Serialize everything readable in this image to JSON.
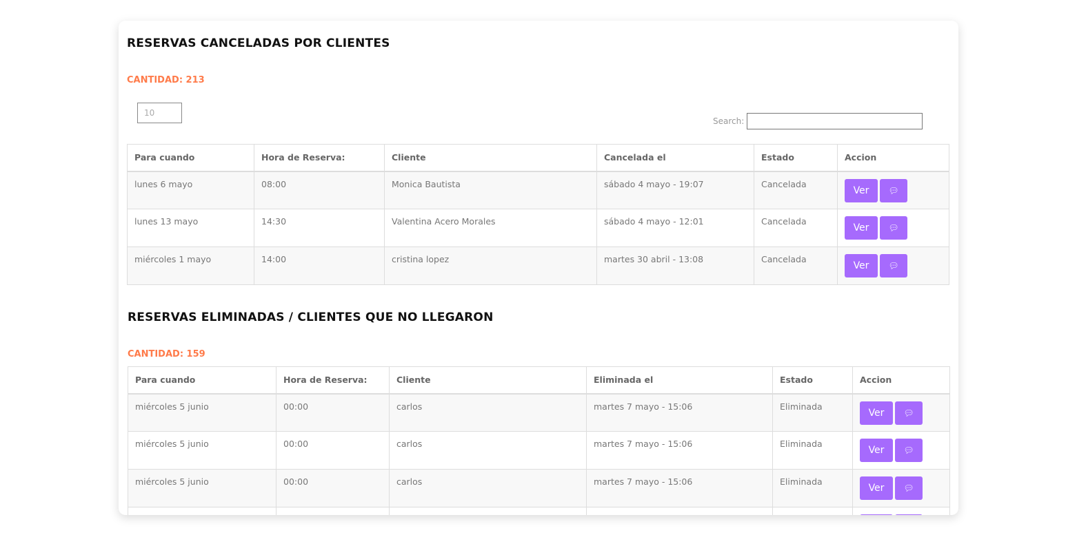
{
  "canceladas": {
    "title": "RESERVAS CANCELADAS POR CLIENTES",
    "count": "CANTIDAD: 213",
    "page_length": "10",
    "search_label": "Search:",
    "search_value": "",
    "headers": [
      "Para cuando",
      "Hora de Reserva:",
      "Cliente",
      "Cancelada el",
      "Estado",
      "Accion"
    ],
    "rows": [
      [
        "lunes 6 mayo",
        "08:00",
        "Monica Bautista",
        "sábado 4 mayo - 19:07",
        "Cancelada"
      ],
      [
        "lunes 13 mayo",
        "14:30",
        "Valentina Acero Morales",
        "sábado 4 mayo - 12:01",
        "Cancelada"
      ],
      [
        "miércoles 1 mayo",
        "14:00",
        "cristina lopez",
        "martes 30 abril - 13:08",
        "Cancelada"
      ]
    ]
  },
  "eliminadas": {
    "title": "RESERVAS ELIMINADAS / CLIENTES QUE NO LLEGARON",
    "count": "CANTIDAD: 159",
    "headers": [
      "Para cuando",
      "Hora de Reserva:",
      "Cliente",
      "Eliminada el",
      "Estado",
      "Accion"
    ],
    "rows": [
      [
        "miércoles 5 junio",
        "00:00",
        "carlos",
        "martes 7 mayo - 15:06",
        "Eliminada"
      ],
      [
        "miércoles 5 junio",
        "00:00",
        "carlos",
        "martes 7 mayo - 15:06",
        "Eliminada"
      ],
      [
        "miércoles 5 junio",
        "00:00",
        "carlos",
        "martes 7 mayo - 15:06",
        "Eliminada"
      ],
      [
        "",
        "",
        "",
        "",
        ""
      ]
    ]
  },
  "buttons": {
    "ver": "Ver",
    "chat_icon": "comments-icon"
  },
  "colors": {
    "accent": "#a66afd",
    "count": "#ff7b4a"
  }
}
